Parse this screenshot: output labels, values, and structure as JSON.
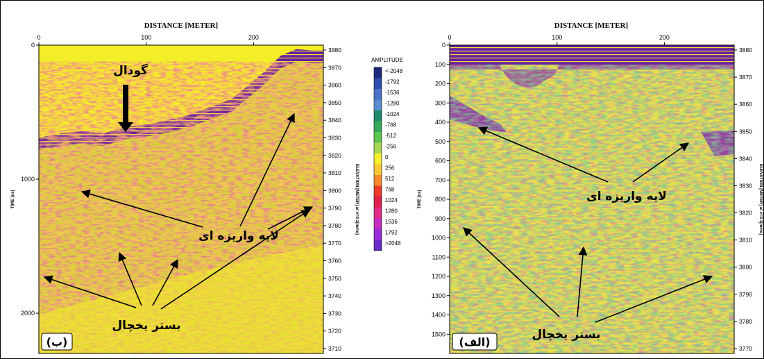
{
  "chart_data": [
    {
      "type": "heatmap",
      "panel_label": "(ب)",
      "title": "DISTANCE [METER]",
      "xlabel": "DISTANCE [METER]",
      "ylabel": "TIME [ns]",
      "ylabel_right": "ELEVATION [METER] at v=0.1[m/ns]",
      "x_ticks": [
        0,
        100,
        200
      ],
      "xlim": [
        0,
        265
      ],
      "y_ticks": [
        0,
        1000,
        2000
      ],
      "ylim": [
        2300,
        0
      ],
      "elevation_ticks": [
        3880,
        3870,
        3860,
        3850,
        3840,
        3830,
        3820,
        3810,
        3800,
        3790,
        3780,
        3770,
        3760,
        3750,
        3740,
        3730,
        3720,
        3710
      ],
      "surface_profile": {
        "x": [
          0,
          20,
          40,
          60,
          80,
          100,
          120,
          140,
          160,
          180,
          195,
          210,
          225,
          240,
          255,
          265
        ],
        "time": [
          690,
          660,
          640,
          660,
          610,
          590,
          560,
          520,
          460,
          400,
          300,
          200,
          80,
          30,
          40,
          40
        ]
      },
      "annotations": [
        {
          "text": "گودال",
          "arrow": true
        },
        {
          "text": "لایه واریزه ای",
          "arrows": 3
        },
        {
          "text": "بستر یخچال",
          "arrows": 4
        }
      ]
    },
    {
      "type": "heatmap",
      "panel_label": "(الف)",
      "title": "DISTANCE [METER]",
      "xlabel": "DISTANCE [METER]",
      "ylabel": "TIME [ns]",
      "ylabel_right": "ELEVATION [METER] at v=0.1[m/ns]",
      "x_ticks": [
        0,
        100,
        200
      ],
      "xlim": [
        0,
        265
      ],
      "y_ticks": [
        0,
        100,
        200,
        300,
        400,
        500,
        600,
        700,
        800,
        900,
        1000,
        1100,
        1200,
        1300,
        1400,
        1500
      ],
      "ylim": [
        1600,
        0
      ],
      "elevation_ticks": [
        3880,
        3870,
        3860,
        3850,
        3840,
        3830,
        3820,
        3810,
        3800,
        3790,
        3780,
        3770
      ],
      "annotations": [
        {
          "text": "لایه واریزه ای",
          "arrows": 2
        },
        {
          "text": "بستر یخچال",
          "arrows": 3
        }
      ]
    }
  ],
  "colorbar": {
    "title": "AMPLITUDE",
    "labels": [
      "<-2048",
      "-1792",
      "-1536",
      "-1280",
      "-1024",
      "-768",
      "-512",
      "-256",
      "0",
      "256",
      "512",
      "768",
      "1024",
      "1280",
      "1536",
      "1792",
      ">2048"
    ],
    "colors": [
      "#1f2a7a",
      "#2e4fb0",
      "#4a72c8",
      "#5a8ed0",
      "#1f8a6a",
      "#37a85a",
      "#5fc450",
      "#a8d850",
      "#f4ee2c",
      "#f7c832",
      "#f58a2c",
      "#ee3a2a",
      "#e0204a",
      "#e02c84",
      "#c42cc0",
      "#9a2cd8",
      "#6a2cc8"
    ],
    "outer": "#1f2a7a"
  },
  "colors": {
    "background": "#f3ee28",
    "surface_band": "#7a2aa8",
    "frame": "#000000"
  }
}
